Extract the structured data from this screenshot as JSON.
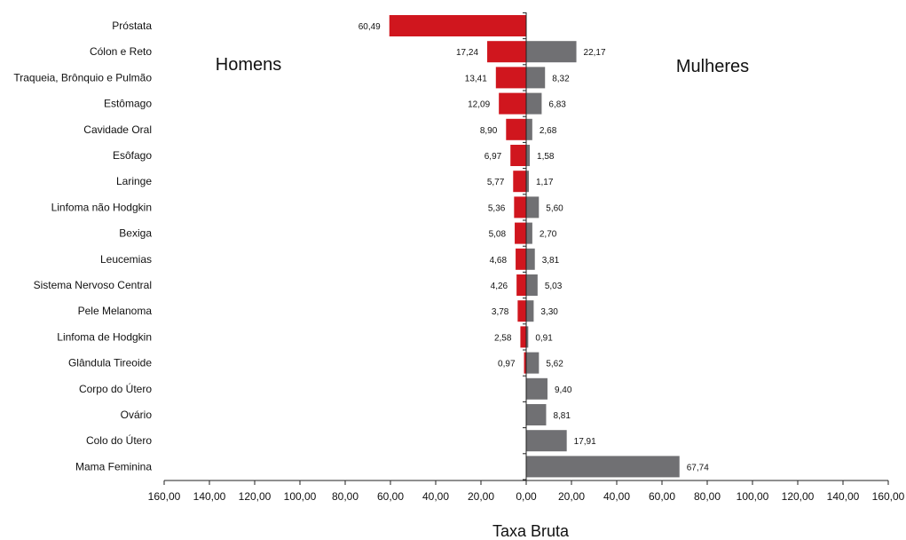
{
  "chart_data": {
    "type": "bar",
    "orientation": "horizontal-butterfly",
    "categories": [
      "Próstata",
      "Cólon e Reto",
      "Traqueia, Brônquio e Pulmão",
      "Estômago",
      "Cavidade Oral",
      "Esôfago",
      "Laringe",
      "Linfoma não Hodgkin",
      "Bexiga",
      "Leucemias",
      "Sistema Nervoso Central",
      "Pele Melanoma",
      "Linfoma de Hodgkin",
      "Glândula Tireoide",
      "Corpo do Útero",
      "Ovário",
      "Colo do Útero",
      "Mama Feminina"
    ],
    "series": [
      {
        "name": "Homens",
        "color": "#d0161e",
        "values": [
          60.49,
          17.24,
          13.41,
          12.09,
          8.9,
          6.97,
          5.77,
          5.36,
          5.08,
          4.68,
          4.26,
          3.78,
          2.58,
          0.97,
          null,
          null,
          null,
          null
        ],
        "labels": [
          "60,49",
          "17,24",
          "13,41",
          "12,09",
          "8,90",
          "6,97",
          "5,77",
          "5,36",
          "5,08",
          "4,68",
          "4,26",
          "3,78",
          "2,58",
          "0,97",
          "",
          "",
          "",
          ""
        ]
      },
      {
        "name": "Mulheres",
        "color": "#707073",
        "values": [
          null,
          22.17,
          8.32,
          6.83,
          2.68,
          1.58,
          1.17,
          5.6,
          2.7,
          3.81,
          5.03,
          3.3,
          0.91,
          5.62,
          9.4,
          8.81,
          17.91,
          67.74
        ],
        "labels": [
          "",
          "22,17",
          "8,32",
          "6,83",
          "2,68",
          "1,58",
          "1,17",
          "5,60",
          "2,70",
          "3,81",
          "5,03",
          "3,30",
          "0,91",
          "5,62",
          "9,40",
          "8,81",
          "17,91",
          "67,74"
        ]
      }
    ],
    "xlim": [
      -160,
      160
    ],
    "xticks": [
      -160,
      -140,
      -120,
      -100,
      -80,
      -60,
      -40,
      -20,
      0,
      20,
      40,
      60,
      80,
      100,
      120,
      140,
      160
    ],
    "xtick_labels": [
      "160,00",
      "140,00",
      "120,00",
      "100,00",
      "80,00",
      "60,00",
      "40,00",
      "20,00",
      "0,00",
      "20,00",
      "40,00",
      "60,00",
      "80,00",
      "100,00",
      "120,00",
      "140,00",
      "160,00"
    ],
    "xlabel": "Taxa Bruta",
    "grid": false,
    "legend_placement": "inline-top"
  }
}
